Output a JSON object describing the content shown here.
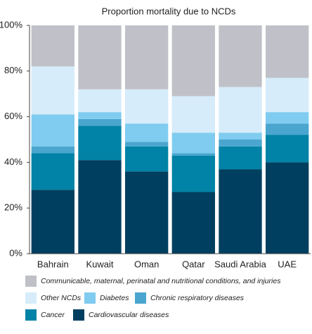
{
  "chart_data": {
    "type": "stacked_bar",
    "title": "Proportion mortality due to NCDs",
    "categories": [
      "Bahrain",
      "Kuwait",
      "Oman",
      "Qatar",
      "Saudi Arabia",
      "UAE"
    ],
    "series": [
      {
        "name": "Cardiovascular diseases",
        "color": "#003f5f",
        "values": [
          28,
          41,
          36,
          27,
          37,
          40
        ]
      },
      {
        "name": "Cancer",
        "color": "#0083a6",
        "values": [
          16,
          15,
          11,
          16,
          10,
          12
        ]
      },
      {
        "name": "Chronic respiratory diseases",
        "color": "#4aa6cf",
        "values": [
          3,
          3,
          2,
          1,
          3,
          5
        ]
      },
      {
        "name": "Diabetes",
        "color": "#7fccf0",
        "values": [
          14,
          3,
          8,
          9,
          3,
          5
        ]
      },
      {
        "name": "Other NCDs",
        "color": "#d6ecfa",
        "values": [
          21,
          10,
          15,
          16,
          20,
          15
        ]
      },
      {
        "name": "Communicable, maternal, perinatal and nutritional conditions, and injuries",
        "color": "#c0c1c8",
        "values": [
          18,
          28,
          28,
          31,
          27,
          23
        ]
      }
    ],
    "ylim": [
      0,
      100
    ],
    "yticks": [
      {
        "value": 0,
        "label": "0%"
      },
      {
        "value": 20,
        "label": "20%"
      },
      {
        "value": 40,
        "label": "40%"
      },
      {
        "value": 60,
        "label": "60%"
      },
      {
        "value": 80,
        "label": "80%"
      },
      {
        "value": 100,
        "label": "100%"
      }
    ],
    "grid": false
  }
}
